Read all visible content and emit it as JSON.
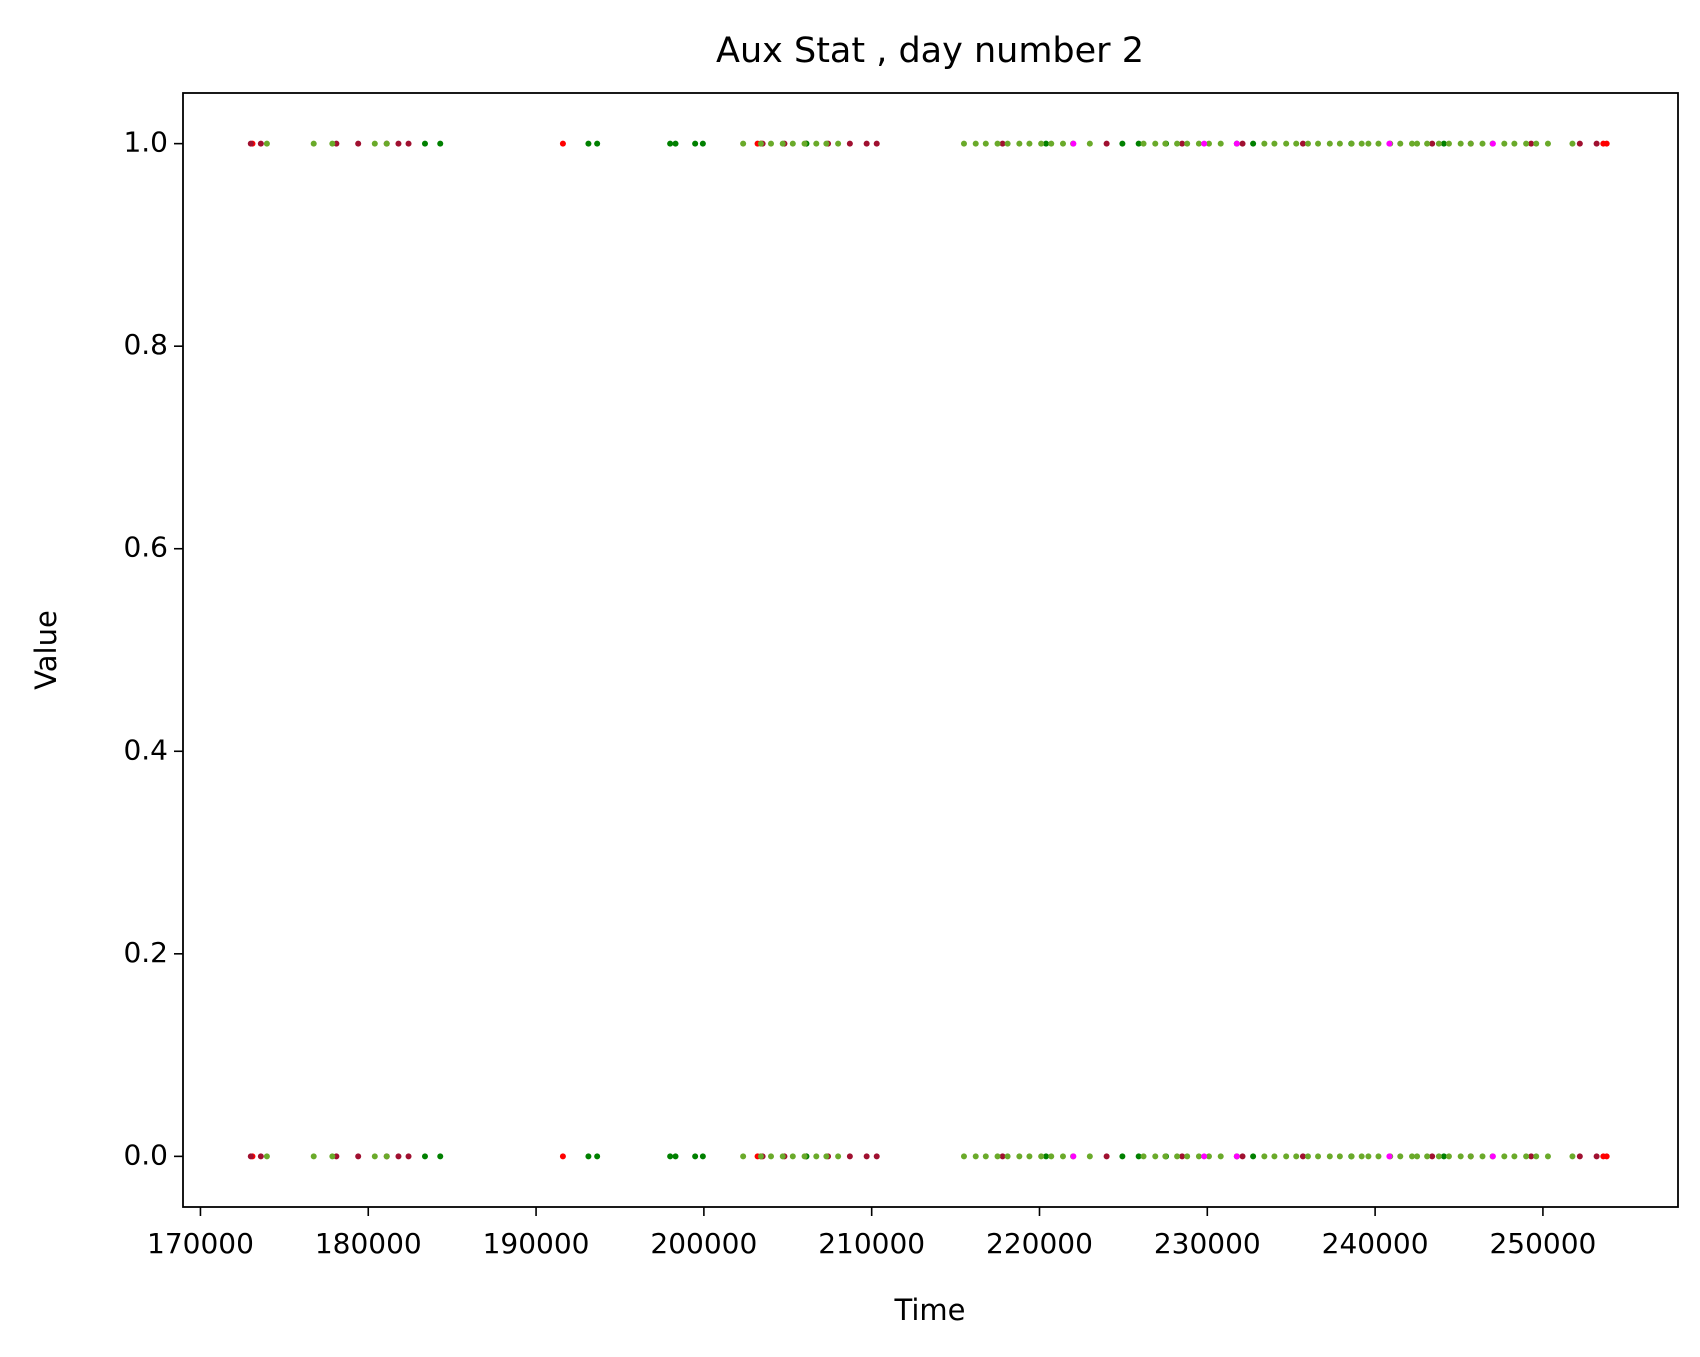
{
  "chart_data": {
    "type": "scatter",
    "title": "Aux Stat , day number 2",
    "xlabel": "Time",
    "ylabel": "Value",
    "xlim": [
      168960,
      258050
    ],
    "ylim": [
      -0.05,
      1.05
    ],
    "xticks": [
      170000,
      180000,
      190000,
      200000,
      210000,
      220000,
      230000,
      240000,
      250000
    ],
    "yticks": [
      {
        "value": 0,
        "label": "0.0"
      },
      0.2,
      0.4,
      0.6,
      0.8,
      {
        "value": 1,
        "label": "1.0"
      }
    ],
    "series": [
      {
        "color": "#ff0000",
        "x": [
          173100,
          191600,
          203200,
          203400,
          253600,
          253800,
          173100,
          191600,
          203200,
          203400,
          253600,
          253800
        ],
        "values": [
          1,
          1,
          1,
          1,
          1,
          1,
          0,
          0,
          0,
          0,
          0,
          0
        ]
      },
      {
        "color": "#a01030",
        "x": [
          173000,
          173600,
          178100,
          179400,
          181100,
          181800,
          182400,
          203500,
          204800,
          206100,
          207400,
          208700,
          209700,
          210300,
          217800,
          224000,
          228500,
          232100,
          235700,
          243400,
          245700,
          249300,
          252200,
          253200,
          173000,
          173600,
          178100,
          179400,
          181100,
          181800,
          182400,
          203500,
          204800,
          206100,
          207400,
          208700,
          209700,
          210300,
          217800,
          224000,
          228500,
          232100,
          235700,
          243400,
          245700,
          249300,
          252200,
          253200
        ],
        "values": [
          1,
          1,
          1,
          1,
          1,
          1,
          1,
          1,
          1,
          1,
          1,
          1,
          1,
          1,
          1,
          1,
          1,
          1,
          1,
          1,
          1,
          1,
          1,
          1,
          0,
          0,
          0,
          0,
          0,
          0,
          0,
          0,
          0,
          0,
          0,
          0,
          0,
          0,
          0,
          0,
          0,
          0,
          0,
          0,
          0,
          0,
          0,
          0
        ]
      },
      {
        "color": "#008000",
        "x": [
          183380,
          184290,
          193120,
          193640,
          197990,
          198310,
          199480,
          199940,
          206110,
          220390,
          224940,
          225910,
          227540,
          231760,
          232730,
          238580,
          244100,
          183380,
          184290,
          193120,
          193640,
          197990,
          198310,
          199480,
          199940,
          206110,
          220390,
          224940,
          225910,
          227540,
          231760,
          232730,
          238580,
          244100
        ],
        "values": [
          1,
          1,
          1,
          1,
          1,
          1,
          1,
          1,
          1,
          1,
          1,
          1,
          1,
          1,
          1,
          1,
          1,
          0,
          0,
          0,
          0,
          0,
          0,
          0,
          0,
          0,
          0,
          0,
          0,
          0,
          0,
          0,
          0,
          0
        ]
      },
      {
        "color": "#6aaa2a",
        "x": [
          173960,
          176750,
          177860,
          180390,
          181100,
          202340,
          203400,
          204000,
          204700,
          205300,
          206000,
          206700,
          207300,
          208000,
          215500,
          216200,
          216800,
          217500,
          218100,
          218800,
          219400,
          220100,
          220700,
          221400,
          222000,
          223000,
          226200,
          226900,
          227500,
          228200,
          228800,
          229500,
          230100,
          230800,
          233400,
          234000,
          234700,
          235300,
          236000,
          236600,
          237300,
          237900,
          238600,
          239200,
          239600,
          240200,
          240900,
          241500,
          242200,
          242500,
          243100,
          243800,
          244400,
          245100,
          245700,
          246400,
          247000,
          247700,
          248300,
          249000,
          249600,
          250300,
          251760,
          173960,
          176750,
          177860,
          180390,
          181100,
          202340,
          203400,
          204000,
          204700,
          205300,
          206000,
          206700,
          207300,
          208000,
          215500,
          216200,
          216800,
          217500,
          218100,
          218800,
          219400,
          220100,
          220700,
          221400,
          222000,
          223000,
          226200,
          226900,
          227500,
          228200,
          228800,
          229500,
          230100,
          230800,
          233400,
          234000,
          234700,
          235300,
          236000,
          236600,
          237300,
          237900,
          238600,
          239200,
          239600,
          240200,
          240900,
          241500,
          242200,
          242500,
          243100,
          243800,
          244400,
          245100,
          245700,
          246400,
          247000,
          247700,
          248300,
          249000,
          249600,
          250300,
          251760
        ],
        "values": [
          1,
          1,
          1,
          1,
          1,
          1,
          1,
          1,
          1,
          1,
          1,
          1,
          1,
          1,
          1,
          1,
          1,
          1,
          1,
          1,
          1,
          1,
          1,
          1,
          1,
          1,
          1,
          1,
          1,
          1,
          1,
          1,
          1,
          1,
          1,
          1,
          1,
          1,
          1,
          1,
          1,
          1,
          1,
          1,
          1,
          1,
          1,
          1,
          1,
          1,
          1,
          1,
          1,
          1,
          1,
          1,
          1,
          1,
          1,
          1,
          1,
          1,
          1,
          0,
          0,
          0,
          0,
          0,
          0,
          0,
          0,
          0,
          0,
          0,
          0,
          0,
          0,
          0,
          0,
          0,
          0,
          0,
          0,
          0,
          0,
          0,
          0,
          0,
          0,
          0,
          0,
          0,
          0,
          0,
          0,
          0,
          0,
          0,
          0,
          0,
          0,
          0,
          0,
          0,
          0,
          0,
          0,
          0,
          0,
          0,
          0,
          0,
          0,
          0,
          0,
          0,
          0,
          0,
          0,
          0,
          0,
          0,
          0,
          0,
          0,
          0
        ]
      },
      {
        "color": "#ff00ff",
        "x": [
          222020,
          229810,
          231760,
          240850,
          247020,
          222020,
          229810,
          231760,
          240850,
          247020
        ],
        "values": [
          1,
          1,
          1,
          1,
          1,
          0,
          0,
          0,
          0,
          0
        ]
      }
    ]
  }
}
